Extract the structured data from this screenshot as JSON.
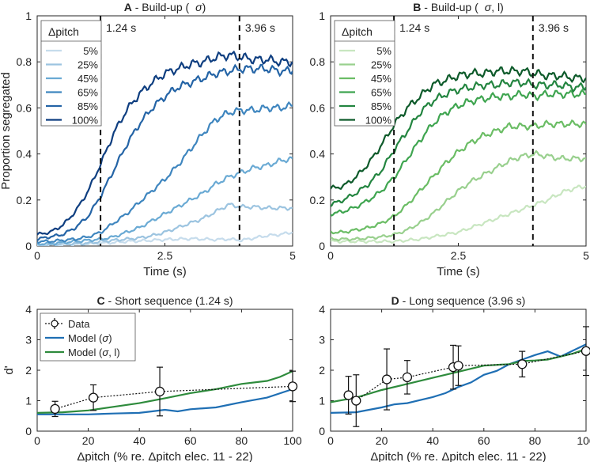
{
  "chart_data": [
    {
      "id": "A",
      "type": "line",
      "panel_letter": "A",
      "title_rest": " - Build-up (",
      "title_sym": "σ",
      "title_close": ")",
      "xlabel": "Time (s)",
      "ylabel": "Proportion segregated",
      "xlim": [
        0,
        5
      ],
      "ylim": [
        0,
        1
      ],
      "xticks": [
        0,
        2.5,
        5
      ],
      "xtick_labels": [
        "0",
        "2.5",
        "5"
      ],
      "yticks": [
        0,
        0.2,
        0.4,
        0.6,
        0.8,
        1
      ],
      "ytick_labels": [
        "0",
        "0.2",
        "0.4",
        "0.6",
        "0.8",
        "1"
      ],
      "legend_title": "Δpitch",
      "vlines": [
        {
          "x": 1.24,
          "label": "1.24 s"
        },
        {
          "x": 3.96,
          "label": "3.96 s"
        }
      ],
      "series": [
        {
          "name": "5%",
          "color": "#c6dcec",
          "x": [
            0,
            0.25,
            0.5,
            0.75,
            1,
            1.25,
            1.5,
            1.75,
            2,
            2.25,
            2.5,
            2.75,
            3,
            3.25,
            3.5,
            3.75,
            4,
            4.25,
            4.5,
            4.75,
            5
          ],
          "values": [
            0,
            0.005,
            0.005,
            0.008,
            0.01,
            0.012,
            0.015,
            0.02,
            0.022,
            0.025,
            0.028,
            0.03,
            0.032,
            0.03,
            0.028,
            0.03,
            0.025,
            0.035,
            0.045,
            0.05,
            0.06
          ]
        },
        {
          "name": "25%",
          "color": "#9cc4e0",
          "x": [
            0,
            0.25,
            0.5,
            0.75,
            1,
            1.25,
            1.5,
            1.75,
            2,
            2.25,
            2.5,
            2.75,
            3,
            3.25,
            3.5,
            3.75,
            4,
            4.25,
            4.5,
            4.75,
            5
          ],
          "values": [
            0,
            0.005,
            0.01,
            0.01,
            0.012,
            0.02,
            0.025,
            0.03,
            0.035,
            0.045,
            0.06,
            0.08,
            0.1,
            0.12,
            0.15,
            0.18,
            0.17,
            0.17,
            0.165,
            0.165,
            0.165
          ]
        },
        {
          "name": "45%",
          "color": "#6aaad4",
          "x": [
            0,
            0.25,
            0.5,
            0.75,
            1,
            1.25,
            1.5,
            1.75,
            2,
            2.25,
            2.5,
            2.75,
            3,
            3.25,
            3.5,
            3.75,
            4,
            4.25,
            4.5,
            4.75,
            5
          ],
          "values": [
            0.01,
            0.01,
            0.015,
            0.02,
            0.025,
            0.03,
            0.04,
            0.06,
            0.08,
            0.11,
            0.14,
            0.17,
            0.2,
            0.23,
            0.27,
            0.3,
            0.32,
            0.34,
            0.35,
            0.37,
            0.38
          ]
        },
        {
          "name": "65%",
          "color": "#3f86bf",
          "x": [
            0,
            0.25,
            0.5,
            0.75,
            1,
            1.25,
            1.5,
            1.75,
            2,
            2.25,
            2.5,
            2.75,
            3,
            3.25,
            3.5,
            3.75,
            4,
            4.25,
            4.5,
            4.75,
            5
          ],
          "values": [
            0.02,
            0.02,
            0.025,
            0.03,
            0.04,
            0.06,
            0.1,
            0.14,
            0.19,
            0.24,
            0.29,
            0.35,
            0.42,
            0.49,
            0.55,
            0.58,
            0.59,
            0.59,
            0.6,
            0.6,
            0.61
          ]
        },
        {
          "name": "85%",
          "color": "#2464a6",
          "x": [
            0,
            0.25,
            0.5,
            0.75,
            1,
            1.25,
            1.5,
            1.75,
            2,
            2.25,
            2.5,
            2.75,
            3,
            3.25,
            3.5,
            3.75,
            4,
            4.25,
            4.5,
            4.75,
            5
          ],
          "values": [
            0.03,
            0.04,
            0.05,
            0.08,
            0.13,
            0.22,
            0.33,
            0.44,
            0.53,
            0.6,
            0.65,
            0.69,
            0.71,
            0.73,
            0.75,
            0.76,
            0.77,
            0.77,
            0.77,
            0.76,
            0.76
          ]
        },
        {
          "name": "100%",
          "color": "#0e3e80",
          "x": [
            0,
            0.25,
            0.5,
            0.75,
            1,
            1.25,
            1.5,
            1.75,
            2,
            2.25,
            2.5,
            2.75,
            3,
            3.25,
            3.5,
            3.75,
            4,
            4.25,
            4.5,
            4.75,
            5
          ],
          "values": [
            0.05,
            0.06,
            0.09,
            0.15,
            0.24,
            0.36,
            0.49,
            0.59,
            0.66,
            0.71,
            0.75,
            0.77,
            0.79,
            0.8,
            0.82,
            0.83,
            0.82,
            0.81,
            0.81,
            0.8,
            0.8
          ]
        }
      ]
    },
    {
      "id": "B",
      "type": "line",
      "panel_letter": "B",
      "title_rest": " - Build-up (",
      "title_sym": "σ",
      "title_close": ", l)",
      "xlabel": "Time (s)",
      "ylabel": "",
      "xlim": [
        0,
        5
      ],
      "ylim": [
        0,
        1
      ],
      "xticks": [
        0,
        2.5,
        5
      ],
      "xtick_labels": [
        "0",
        "2.5",
        "5"
      ],
      "yticks": [
        0,
        0.2,
        0.4,
        0.6,
        0.8,
        1
      ],
      "ytick_labels": [
        "0",
        "0.2",
        "0.4",
        "0.6",
        "0.8",
        "1"
      ],
      "legend_title": "Δpitch",
      "vlines": [
        {
          "x": 1.24,
          "label": "1.24 s"
        },
        {
          "x": 3.96,
          "label": "3.96 s"
        }
      ],
      "series": [
        {
          "name": "5%",
          "color": "#c8e6c0",
          "x": [
            0,
            0.25,
            0.5,
            0.75,
            1,
            1.25,
            1.5,
            1.75,
            2,
            2.25,
            2.5,
            2.75,
            3,
            3.25,
            3.5,
            3.75,
            4,
            4.25,
            4.5,
            4.75,
            5
          ],
          "values": [
            0.02,
            0.02,
            0.02,
            0.02,
            0.02,
            0.02,
            0.025,
            0.03,
            0.04,
            0.05,
            0.06,
            0.08,
            0.1,
            0.12,
            0.14,
            0.16,
            0.18,
            0.2,
            0.23,
            0.25,
            0.26
          ]
        },
        {
          "name": "25%",
          "color": "#99d08e",
          "x": [
            0,
            0.25,
            0.5,
            0.75,
            1,
            1.25,
            1.5,
            1.75,
            2,
            2.25,
            2.5,
            2.75,
            3,
            3.25,
            3.5,
            3.75,
            4,
            4.25,
            4.5,
            4.75,
            5
          ],
          "values": [
            0.03,
            0.03,
            0.03,
            0.035,
            0.04,
            0.05,
            0.07,
            0.1,
            0.14,
            0.19,
            0.24,
            0.28,
            0.31,
            0.34,
            0.37,
            0.39,
            0.4,
            0.39,
            0.38,
            0.38,
            0.38
          ]
        },
        {
          "name": "45%",
          "color": "#6bbd65",
          "x": [
            0,
            0.25,
            0.5,
            0.75,
            1,
            1.25,
            1.5,
            1.75,
            2,
            2.25,
            2.5,
            2.75,
            3,
            3.25,
            3.5,
            3.75,
            4,
            4.25,
            4.5,
            4.75,
            5
          ],
          "values": [
            0.06,
            0.06,
            0.07,
            0.08,
            0.1,
            0.13,
            0.18,
            0.24,
            0.3,
            0.36,
            0.41,
            0.45,
            0.48,
            0.5,
            0.52,
            0.52,
            0.52,
            0.53,
            0.53,
            0.53,
            0.53
          ]
        },
        {
          "name": "65%",
          "color": "#3fa550",
          "x": [
            0,
            0.25,
            0.5,
            0.75,
            1,
            1.25,
            1.5,
            1.75,
            2,
            2.25,
            2.5,
            2.75,
            3,
            3.25,
            3.5,
            3.75,
            4,
            4.25,
            4.5,
            4.75,
            5
          ],
          "values": [
            0.14,
            0.15,
            0.17,
            0.2,
            0.24,
            0.3,
            0.38,
            0.46,
            0.53,
            0.58,
            0.61,
            0.63,
            0.64,
            0.65,
            0.65,
            0.66,
            0.65,
            0.66,
            0.66,
            0.66,
            0.66
          ]
        },
        {
          "name": "85%",
          "color": "#238540",
          "x": [
            0,
            0.25,
            0.5,
            0.75,
            1,
            1.25,
            1.5,
            1.75,
            2,
            2.25,
            2.5,
            2.75,
            3,
            3.25,
            3.5,
            3.75,
            4,
            4.25,
            4.5,
            4.75,
            5
          ],
          "values": [
            0.18,
            0.2,
            0.23,
            0.27,
            0.33,
            0.42,
            0.5,
            0.58,
            0.63,
            0.66,
            0.68,
            0.69,
            0.7,
            0.7,
            0.71,
            0.71,
            0.7,
            0.7,
            0.7,
            0.69,
            0.69
          ]
        },
        {
          "name": "100%",
          "color": "#0d5a2a",
          "x": [
            0,
            0.25,
            0.5,
            0.75,
            1,
            1.25,
            1.5,
            1.75,
            2,
            2.25,
            2.5,
            2.75,
            3,
            3.25,
            3.5,
            3.75,
            4,
            4.25,
            4.5,
            4.75,
            5
          ],
          "values": [
            0.25,
            0.26,
            0.3,
            0.36,
            0.44,
            0.53,
            0.6,
            0.65,
            0.7,
            0.72,
            0.74,
            0.75,
            0.75,
            0.76,
            0.76,
            0.76,
            0.75,
            0.74,
            0.74,
            0.73,
            0.73
          ]
        }
      ]
    },
    {
      "id": "C",
      "type": "line",
      "panel_letter": "C",
      "title_rest": " - Short sequence (1.24 s)",
      "xlabel": "Δpitch (% re. Δpitch elec. 11 - 22)",
      "ylabel": "d'",
      "xlim": [
        0,
        100
      ],
      "ylim": [
        0,
        4
      ],
      "xticks": [
        0,
        20,
        40,
        60,
        80,
        100
      ],
      "xtick_labels": [
        "0",
        "20",
        "40",
        "60",
        "80",
        "100"
      ],
      "yticks": [
        0,
        1,
        2,
        3,
        4
      ],
      "ytick_labels": [
        "0",
        "1",
        "2",
        "3",
        "4"
      ],
      "legend": {
        "data": "Data",
        "model_a_text": "Model (",
        "model_a_sym": "σ",
        "model_a_close": ")",
        "model_b_text": "Model (",
        "model_b_sym": "σ",
        "model_b_close": ", l)"
      },
      "data_points": {
        "x": [
          7,
          22,
          48,
          100
        ],
        "y": [
          0.73,
          1.1,
          1.3,
          1.47
        ],
        "err": [
          0.25,
          0.42,
          0.8,
          0.5
        ]
      },
      "model_sigma": {
        "color": "#1f6fb4",
        "x": [
          0,
          10,
          20,
          30,
          40,
          45,
          50,
          55,
          60,
          70,
          80,
          90,
          100
        ],
        "y": [
          0.55,
          0.55,
          0.55,
          0.58,
          0.6,
          0.65,
          0.7,
          0.65,
          0.72,
          0.78,
          0.95,
          1.1,
          1.38
        ]
      },
      "model_sigma_l": {
        "color": "#2e8b3c",
        "x": [
          0,
          10,
          20,
          30,
          40,
          50,
          60,
          70,
          80,
          90,
          95,
          100
        ],
        "y": [
          0.6,
          0.62,
          0.68,
          0.8,
          0.92,
          1.08,
          1.25,
          1.38,
          1.55,
          1.65,
          1.78,
          1.97
        ]
      }
    },
    {
      "id": "D",
      "type": "line",
      "panel_letter": "D",
      "title_rest": " - Long sequence (3.96 s)",
      "xlabel": "Δpitch (% re. Δpitch elec. 11 - 22)",
      "ylabel": "",
      "xlim": [
        0,
        100
      ],
      "ylim": [
        0,
        4
      ],
      "xticks": [
        0,
        20,
        40,
        60,
        80,
        100
      ],
      "xtick_labels": [
        "0",
        "20",
        "40",
        "60",
        "80",
        "100"
      ],
      "yticks": [
        0,
        1,
        2,
        3,
        4
      ],
      "ytick_labels": [
        "0",
        "1",
        "2",
        "3",
        "4"
      ],
      "data_points": {
        "x": [
          7,
          10,
          22,
          30,
          48,
          50,
          75,
          100
        ],
        "y": [
          1.18,
          1.0,
          1.7,
          1.77,
          2.1,
          2.15,
          2.2,
          2.63
        ],
        "err": [
          0.62,
          0.85,
          1.0,
          0.55,
          0.72,
          0.65,
          0.42,
          0.8
        ]
      },
      "model_sigma": {
        "color": "#1f6fb4",
        "x": [
          0,
          10,
          20,
          25,
          30,
          40,
          45,
          50,
          55,
          60,
          65,
          70,
          75,
          80,
          85,
          90,
          95,
          100
        ],
        "y": [
          0.6,
          0.62,
          0.78,
          0.88,
          0.92,
          1.12,
          1.25,
          1.45,
          1.6,
          1.85,
          1.98,
          2.2,
          2.35,
          2.5,
          2.62,
          2.45,
          2.65,
          2.85
        ]
      },
      "model_sigma_l": {
        "color": "#2e8b3c",
        "x": [
          0,
          10,
          20,
          30,
          40,
          50,
          55,
          60,
          70,
          75,
          80,
          85,
          90,
          95,
          100
        ],
        "y": [
          0.95,
          1.1,
          1.35,
          1.55,
          1.75,
          1.95,
          2.05,
          2.15,
          2.2,
          2.3,
          2.32,
          2.35,
          2.45,
          2.55,
          2.7
        ]
      }
    }
  ]
}
